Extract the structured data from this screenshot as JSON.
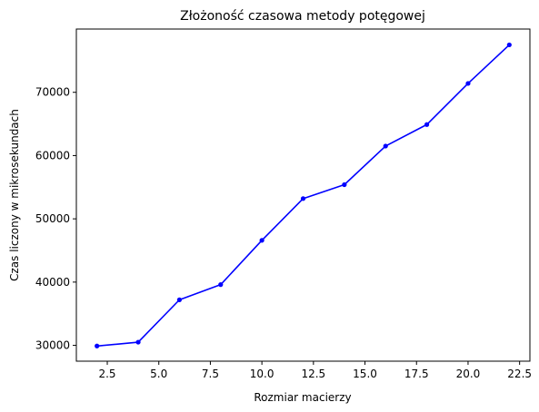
{
  "chart_data": {
    "type": "line",
    "title": "Złożoność czasowa metody potęgowej",
    "xlabel": "Rozmiar macierzy",
    "ylabel": "Czas liczony w mikrosekundach",
    "xlim": [
      1.0,
      23.0
    ],
    "ylim": [
      27500,
      80000
    ],
    "grid": false,
    "x_ticks": [
      2.5,
      5.0,
      7.5,
      10.0,
      12.5,
      15.0,
      17.5,
      20.0,
      22.5
    ],
    "x_tick_labels": [
      "2.5",
      "5.0",
      "7.5",
      "10.0",
      "12.5",
      "15.0",
      "17.5",
      "20.0",
      "22.5"
    ],
    "y_ticks": [
      30000,
      40000,
      50000,
      60000,
      70000
    ],
    "y_tick_labels": [
      "30000",
      "40000",
      "50000",
      "60000",
      "70000"
    ],
    "series": [
      {
        "color": "#0000ff",
        "marker": "dot",
        "x": [
          2,
          4,
          6,
          8,
          10,
          12,
          14,
          16,
          18,
          20,
          22
        ],
        "y": [
          29900,
          30500,
          37200,
          39600,
          46600,
          53200,
          55400,
          61500,
          64900,
          71400,
          77500
        ]
      }
    ]
  }
}
